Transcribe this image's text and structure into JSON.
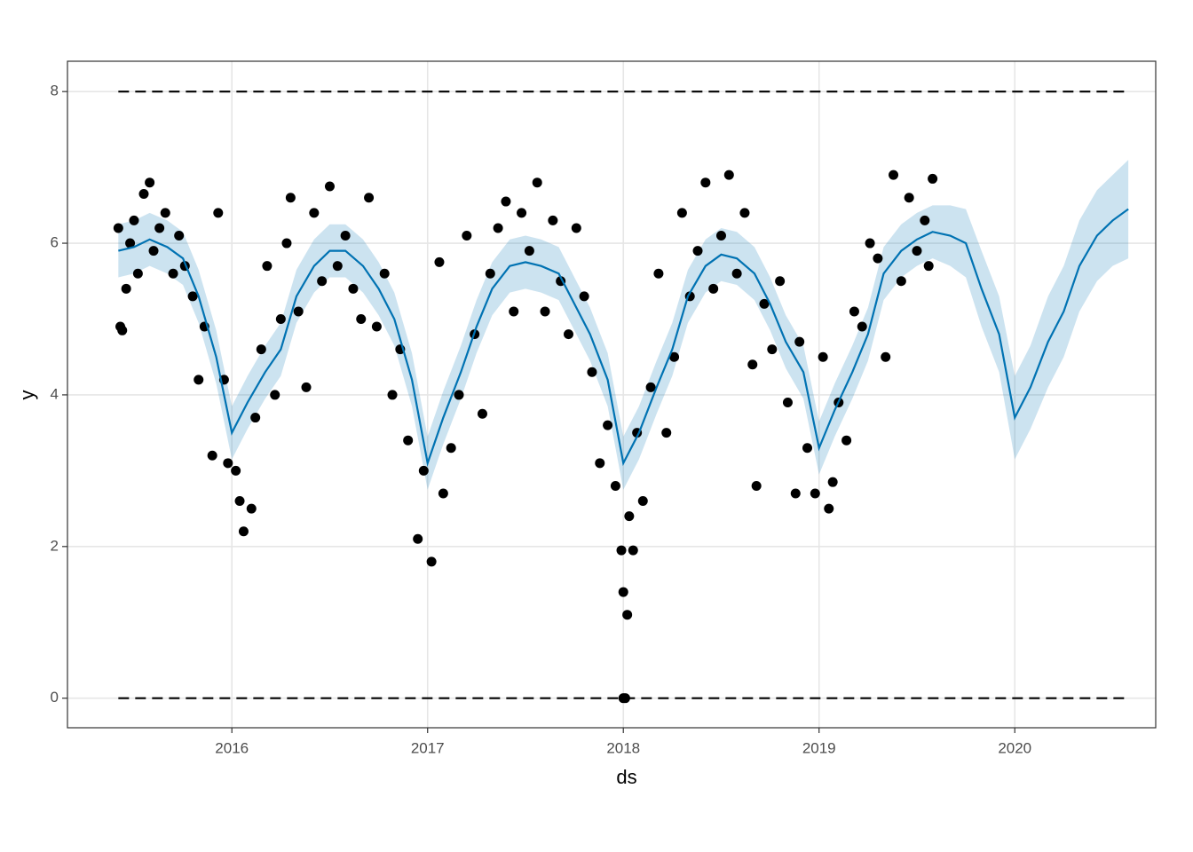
{
  "chart_data": {
    "type": "forecast",
    "xlabel": "ds",
    "ylabel": "y",
    "xlim": [
      2015.16,
      2020.72
    ],
    "ylim": [
      -0.39,
      8.4
    ],
    "xticks": [
      2016,
      2017,
      2018,
      2019,
      2020
    ],
    "yticks": [
      0,
      2,
      4,
      6,
      8
    ],
    "grid": true,
    "forecast": {
      "color": "#0072B2",
      "x": [
        2015.42,
        2015.5,
        2015.58,
        2015.67,
        2015.75,
        2015.83,
        2015.92,
        2016.0,
        2016.08,
        2016.17,
        2016.25,
        2016.33,
        2016.42,
        2016.5,
        2016.58,
        2016.67,
        2016.75,
        2016.83,
        2016.92,
        2017.0,
        2017.08,
        2017.17,
        2017.25,
        2017.33,
        2017.42,
        2017.5,
        2017.58,
        2017.67,
        2017.75,
        2017.83,
        2017.92,
        2018.0,
        2018.08,
        2018.17,
        2018.25,
        2018.33,
        2018.42,
        2018.5,
        2018.58,
        2018.67,
        2018.75,
        2018.83,
        2018.92,
        2019.0,
        2019.08,
        2019.17,
        2019.25,
        2019.33,
        2019.42,
        2019.5,
        2019.58,
        2019.67,
        2019.75,
        2019.83,
        2019.92,
        2020.0,
        2020.08,
        2020.17,
        2020.25,
        2020.33,
        2020.42,
        2020.5,
        2020.58
      ],
      "yhat": [
        5.9,
        5.95,
        6.05,
        5.95,
        5.8,
        5.3,
        4.5,
        3.5,
        3.9,
        4.3,
        4.6,
        5.3,
        5.7,
        5.9,
        5.9,
        5.7,
        5.4,
        5.0,
        4.2,
        3.1,
        3.7,
        4.3,
        4.9,
        5.4,
        5.7,
        5.75,
        5.7,
        5.6,
        5.2,
        4.8,
        4.2,
        3.1,
        3.5,
        4.1,
        4.6,
        5.3,
        5.7,
        5.85,
        5.8,
        5.6,
        5.2,
        4.7,
        4.3,
        3.3,
        3.8,
        4.3,
        4.8,
        5.6,
        5.9,
        6.05,
        6.15,
        6.1,
        6.0,
        5.4,
        4.8,
        3.7,
        4.1,
        4.7,
        5.1,
        5.7,
        6.1,
        6.3,
        6.45
      ],
      "lower": [
        5.55,
        5.6,
        5.7,
        5.6,
        5.45,
        4.95,
        4.15,
        3.15,
        3.55,
        3.95,
        4.25,
        4.95,
        5.35,
        5.55,
        5.55,
        5.35,
        5.05,
        4.65,
        3.85,
        2.75,
        3.35,
        3.95,
        4.55,
        5.05,
        5.35,
        5.4,
        5.35,
        5.25,
        4.85,
        4.45,
        3.85,
        2.75,
        3.15,
        3.75,
        4.25,
        4.95,
        5.35,
        5.5,
        5.45,
        5.25,
        4.85,
        4.35,
        3.95,
        2.95,
        3.45,
        3.95,
        4.45,
        5.25,
        5.55,
        5.7,
        5.8,
        5.7,
        5.55,
        4.9,
        4.3,
        3.15,
        3.55,
        4.1,
        4.5,
        5.1,
        5.5,
        5.7,
        5.8
      ],
      "upper": [
        6.25,
        6.3,
        6.4,
        6.3,
        6.15,
        5.65,
        4.85,
        3.85,
        4.25,
        4.65,
        4.95,
        5.65,
        6.05,
        6.25,
        6.25,
        6.05,
        5.75,
        5.35,
        4.55,
        3.45,
        4.05,
        4.65,
        5.25,
        5.75,
        6.05,
        6.1,
        6.05,
        5.95,
        5.55,
        5.15,
        4.55,
        3.45,
        3.85,
        4.45,
        4.95,
        5.65,
        6.05,
        6.2,
        6.15,
        5.95,
        5.55,
        5.05,
        4.65,
        3.65,
        4.15,
        4.65,
        5.15,
        5.95,
        6.25,
        6.4,
        6.5,
        6.5,
        6.45,
        5.9,
        5.3,
        4.25,
        4.65,
        5.3,
        5.7,
        6.3,
        6.7,
        6.9,
        7.1
      ]
    },
    "observed": {
      "color": "#000000",
      "x": [
        2015.42,
        2015.43,
        2015.44,
        2015.46,
        2015.48,
        2015.5,
        2015.52,
        2015.55,
        2015.58,
        2015.6,
        2015.63,
        2015.66,
        2015.7,
        2015.73,
        2015.76,
        2015.8,
        2015.83,
        2015.86,
        2015.9,
        2015.93,
        2015.96,
        2015.98,
        2016.02,
        2016.04,
        2016.06,
        2016.1,
        2016.12,
        2016.15,
        2016.18,
        2016.22,
        2016.25,
        2016.28,
        2016.3,
        2016.34,
        2016.38,
        2016.42,
        2016.46,
        2016.5,
        2016.54,
        2016.58,
        2016.62,
        2016.66,
        2016.7,
        2016.74,
        2016.78,
        2016.82,
        2016.86,
        2016.9,
        2016.95,
        2016.98,
        2017.02,
        2017.06,
        2017.08,
        2017.12,
        2017.16,
        2017.2,
        2017.24,
        2017.28,
        2017.32,
        2017.36,
        2017.4,
        2017.44,
        2017.48,
        2017.52,
        2017.56,
        2017.6,
        2017.64,
        2017.68,
        2017.72,
        2017.76,
        2017.8,
        2017.84,
        2017.88,
        2017.92,
        2017.96,
        2017.99,
        2018.0,
        2018.0,
        2018.01,
        2018.02,
        2018.03,
        2018.05,
        2018.07,
        2018.1,
        2018.14,
        2018.18,
        2018.22,
        2018.26,
        2018.3,
        2018.34,
        2018.38,
        2018.42,
        2018.46,
        2018.5,
        2018.54,
        2018.58,
        2018.62,
        2018.66,
        2018.68,
        2018.72,
        2018.76,
        2018.8,
        2018.84,
        2018.88,
        2018.9,
        2018.94,
        2018.98,
        2019.02,
        2019.05,
        2019.07,
        2019.1,
        2019.14,
        2019.18,
        2019.22,
        2019.26,
        2019.3,
        2019.34,
        2019.38,
        2019.42,
        2019.46,
        2019.5,
        2019.54,
        2019.56,
        2019.58
      ],
      "y": [
        6.2,
        4.9,
        4.85,
        5.4,
        6.0,
        6.3,
        5.6,
        6.65,
        6.8,
        5.9,
        6.2,
        6.4,
        5.6,
        6.1,
        5.7,
        5.3,
        4.2,
        4.9,
        3.2,
        6.4,
        4.2,
        3.1,
        3.0,
        2.6,
        2.2,
        2.5,
        3.7,
        4.6,
        5.7,
        4.0,
        5.0,
        6.0,
        6.6,
        5.1,
        4.1,
        6.4,
        5.5,
        6.75,
        5.7,
        6.1,
        5.4,
        5.0,
        6.6,
        4.9,
        5.6,
        4.0,
        4.6,
        3.4,
        2.1,
        3.0,
        1.8,
        5.75,
        2.7,
        3.3,
        4.0,
        6.1,
        4.8,
        3.75,
        5.6,
        6.2,
        6.55,
        5.1,
        6.4,
        5.9,
        6.8,
        5.1,
        6.3,
        5.5,
        4.8,
        6.2,
        5.3,
        4.3,
        3.1,
        3.6,
        2.8,
        1.95,
        1.4,
        0,
        0,
        1.1,
        2.4,
        1.95,
        3.5,
        2.6,
        4.1,
        5.6,
        3.5,
        4.5,
        6.4,
        5.3,
        5.9,
        6.8,
        5.4,
        6.1,
        6.9,
        5.6,
        6.4,
        4.4,
        2.8,
        5.2,
        4.6,
        5.5,
        3.9,
        2.7,
        4.7,
        3.3,
        2.7,
        4.5,
        2.5,
        2.85,
        3.9,
        3.4,
        5.1,
        4.9,
        6.0,
        5.8,
        4.5,
        6.9,
        5.5,
        6.6,
        5.9,
        6.3,
        5.7,
        6.85
      ]
    },
    "cap": {
      "x": [
        2015.42,
        2020.58
      ],
      "values": [
        8,
        8
      ]
    },
    "floor": {
      "x": [
        2015.42,
        2020.58
      ],
      "values": [
        0,
        0
      ]
    }
  }
}
